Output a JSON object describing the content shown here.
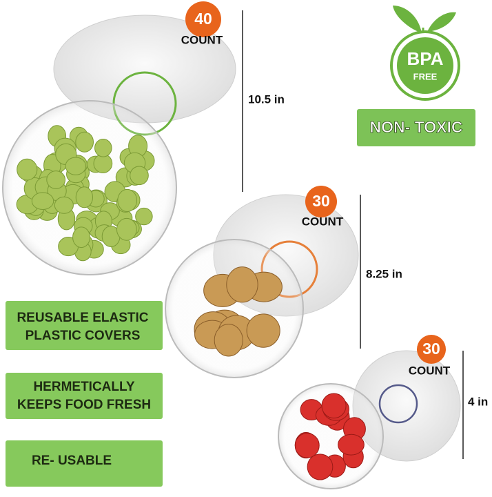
{
  "products": [
    {
      "count": "40",
      "unit": "COUNT",
      "size": "10.5 in"
    },
    {
      "count": "30",
      "unit": "COUNT",
      "size": "8.25 in"
    },
    {
      "count": "30",
      "unit": "COUNT",
      "size": "4 in"
    }
  ],
  "badge": {
    "title": "BPA",
    "subtitle": "FREE"
  },
  "claim": "NON- TOXIC",
  "features": [
    {
      "lines": [
        "REUSABLE  ELASTIC",
        "PLASTIC  COVERS"
      ]
    },
    {
      "lines": [
        "HERMETICALLY",
        "KEEPS FOOD FRESH"
      ]
    },
    {
      "lines": [
        "RE- USABLE"
      ]
    }
  ]
}
